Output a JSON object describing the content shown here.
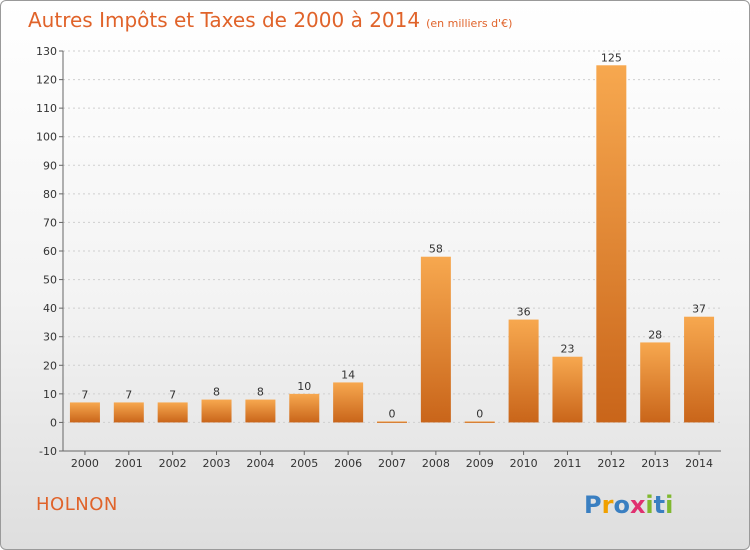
{
  "header": {
    "title": "Autres Impôts et Taxes de 2000 à 2014",
    "unit": "(en milliers d'€)"
  },
  "footer": {
    "town": "HOLNON",
    "logo_letters": [
      "P",
      "r",
      "o",
      "x",
      "i",
      "t",
      "i"
    ],
    "logo_colors": [
      "#3a7fc1",
      "#f0a000",
      "#3a7fc1",
      "#e03070",
      "#80b830",
      "#3a7fc1",
      "#80b830"
    ]
  },
  "chart_data": {
    "type": "bar",
    "categories": [
      "2000",
      "2001",
      "2002",
      "2003",
      "2004",
      "2005",
      "2006",
      "2007",
      "2008",
      "2009",
      "2010",
      "2011",
      "2012",
      "2013",
      "2014"
    ],
    "values": [
      7,
      7,
      7,
      8,
      8,
      10,
      14,
      0,
      58,
      0,
      36,
      23,
      125,
      28,
      37
    ],
    "data_labels": [
      "7",
      "7",
      "7",
      "8",
      "8",
      "10",
      "14",
      "0",
      "58",
      "0",
      "36",
      "23",
      "125",
      "28",
      "37"
    ],
    "ylim": [
      -10,
      130
    ],
    "yticks": [
      -10,
      0,
      10,
      20,
      30,
      40,
      50,
      60,
      70,
      80,
      90,
      100,
      110,
      120,
      130
    ],
    "grid": true,
    "bar_color": "#f0963c",
    "title": "Autres Impôts et Taxes de 2000 à 2014",
    "xlabel": "",
    "ylabel": ""
  }
}
